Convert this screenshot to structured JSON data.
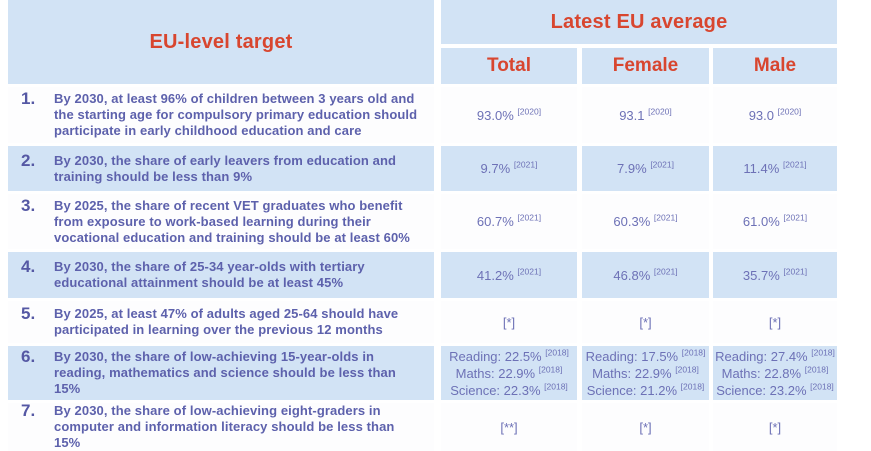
{
  "palette": {
    "accent_red": "#d8462f",
    "light_blue": "#d2e3f5",
    "text_purple": "#5d61ac",
    "value_purple": "#6d71b6"
  },
  "header": {
    "target_column": "EU-level target",
    "average_group": "Latest EU average",
    "columns": [
      "Total",
      "Female",
      "Male"
    ]
  },
  "rows": [
    {
      "num": "1.",
      "target": "By 2030, at least 96% of children between 3 years old and the starting age for compulsory primary education should participate in early childhood education and care",
      "total": [
        {
          "v": "93.0%",
          "n": "[2020]"
        }
      ],
      "female": [
        {
          "v": "93.1",
          "n": "[2020]"
        }
      ],
      "male": [
        {
          "v": "93.0",
          "n": "[2020]"
        }
      ]
    },
    {
      "num": "2.",
      "target": "By 2030, the share of early leavers from education and training should be less than 9%",
      "total": [
        {
          "v": "9.7%",
          "n": "[2021]"
        }
      ],
      "female": [
        {
          "v": "7.9%",
          "n": "[2021]"
        }
      ],
      "male": [
        {
          "v": "11.4%",
          "n": "[2021]"
        }
      ]
    },
    {
      "num": "3.",
      "target": "By 2025, the share of recent VET graduates who benefit from exposure to work-based learning during their vocational education and training should be at least 60%",
      "total": [
        {
          "v": "60.7%",
          "n": "[2021]"
        }
      ],
      "female": [
        {
          "v": "60.3%",
          "n": "[2021]"
        }
      ],
      "male": [
        {
          "v": "61.0%",
          "n": "[2021]"
        }
      ]
    },
    {
      "num": "4.",
      "target": "By 2030, the share of 25-34 year-olds with tertiary educational attainment should be at least 45%",
      "total": [
        {
          "v": "41.2%",
          "n": "[2021]"
        }
      ],
      "female": [
        {
          "v": "46.8%",
          "n": "[2021]"
        }
      ],
      "male": [
        {
          "v": "35.7%",
          "n": "[2021]"
        }
      ]
    },
    {
      "num": "5.",
      "target": "By 2025, at least 47% of adults aged 25-64 should have participated in learning over the previous 12 months",
      "total": [
        {
          "v": "[*]"
        }
      ],
      "female": [
        {
          "v": "[*]"
        }
      ],
      "male": [
        {
          "v": "[*]"
        }
      ]
    },
    {
      "num": "6.",
      "target": "By 2030, the share of low-achieving 15-year-olds in reading, mathematics and science should be less than 15%",
      "total": [
        {
          "v": "Reading: 22.5%",
          "n": "[2018]"
        },
        {
          "v": "Maths: 22.9%",
          "n": "[2018]"
        },
        {
          "v": "Science: 22.3%",
          "n": "[2018]"
        }
      ],
      "female": [
        {
          "v": "Reading: 17.5%",
          "n": "[2018]"
        },
        {
          "v": "Maths: 22.9%",
          "n": "[2018]"
        },
        {
          "v": "Science: 21.2%",
          "n": "[2018]"
        }
      ],
      "male": [
        {
          "v": "Reading: 27.4%",
          "n": "[2018]"
        },
        {
          "v": "Maths: 22.8%",
          "n": "[2018]"
        },
        {
          "v": "Science: 23.2%",
          "n": "[2018]"
        }
      ]
    },
    {
      "num": "7.",
      "target": "By 2030, the share of low-achieving eight-graders in computer and information literacy should be less than 15%",
      "total": [
        {
          "v": "[**]"
        }
      ],
      "female": [
        {
          "v": "[*]"
        }
      ],
      "male": [
        {
          "v": "[*]"
        }
      ]
    }
  ]
}
